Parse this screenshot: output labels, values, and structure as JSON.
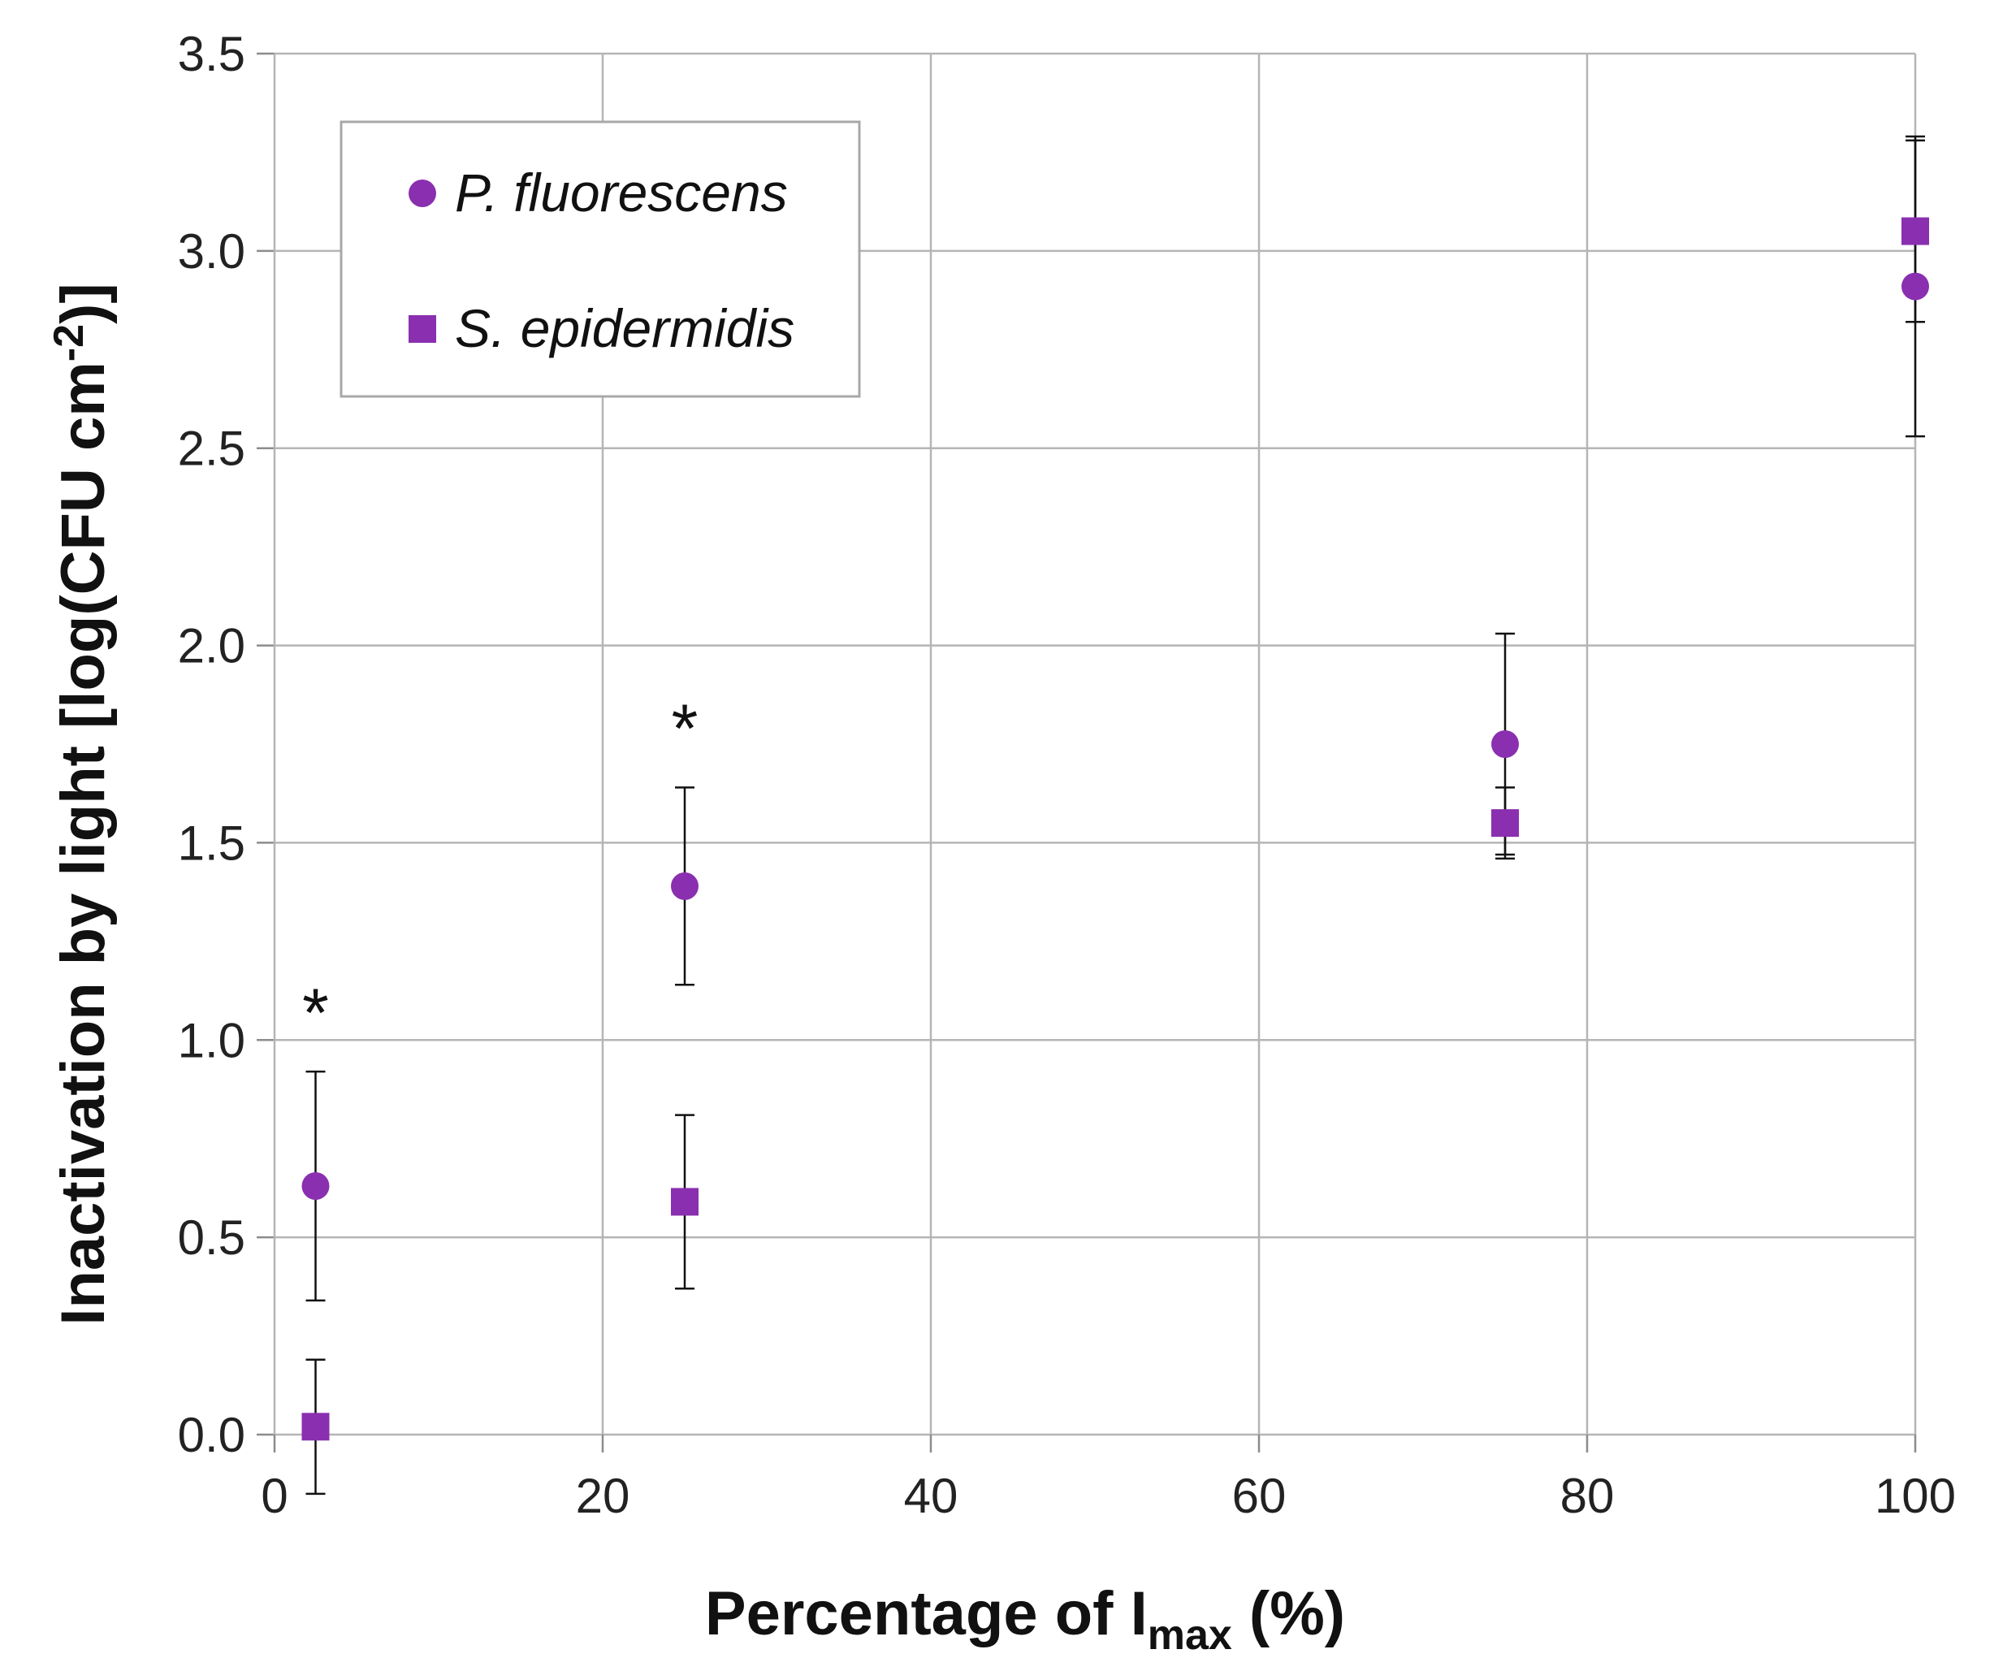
{
  "chart_data": {
    "type": "scatter",
    "xlabel": "Percentage of I",
    "xlabel_sub": "max",
    "xlabel_suffix": " (%)",
    "ylabel": "Inactivation by light [log(CFU cm",
    "ylabel_sup": "-2",
    "ylabel_suffix": ")]",
    "xlim": [
      0,
      100
    ],
    "ylim": [
      0,
      3.5
    ],
    "x_ticks": [
      0,
      20,
      40,
      60,
      80,
      100
    ],
    "x_tick_labels": [
      "0",
      "20",
      "40",
      "60",
      "80",
      "100"
    ],
    "y_ticks": [
      0,
      0.5,
      1.0,
      1.5,
      2.0,
      2.5,
      3.0,
      3.5
    ],
    "y_tick_labels": [
      "0.0",
      "0.5",
      "1.0",
      "1.5",
      "2.0",
      "2.5",
      "3.0",
      "3.5"
    ],
    "grid": true,
    "legend_position": "top-left",
    "series": [
      {
        "name": "P. fluorescens",
        "marker": "circle",
        "color": "#8a2fb0",
        "x": [
          2.5,
          25,
          75,
          100
        ],
        "y": [
          0.63,
          1.39,
          1.75,
          2.91
        ],
        "error": [
          0.29,
          0.25,
          0.28,
          0.38
        ]
      },
      {
        "name": "S. epidermidis",
        "marker": "square",
        "color": "#8a2fb0",
        "x": [
          2.5,
          25,
          75,
          100
        ],
        "y": [
          0.02,
          0.59,
          1.55,
          3.05
        ],
        "error": [
          0.17,
          0.22,
          0.09,
          0.23
        ]
      }
    ],
    "annotations": [
      {
        "text": "*",
        "x": 2.5,
        "y": 1.08
      },
      {
        "text": "*",
        "x": 25,
        "y": 1.8
      }
    ]
  }
}
